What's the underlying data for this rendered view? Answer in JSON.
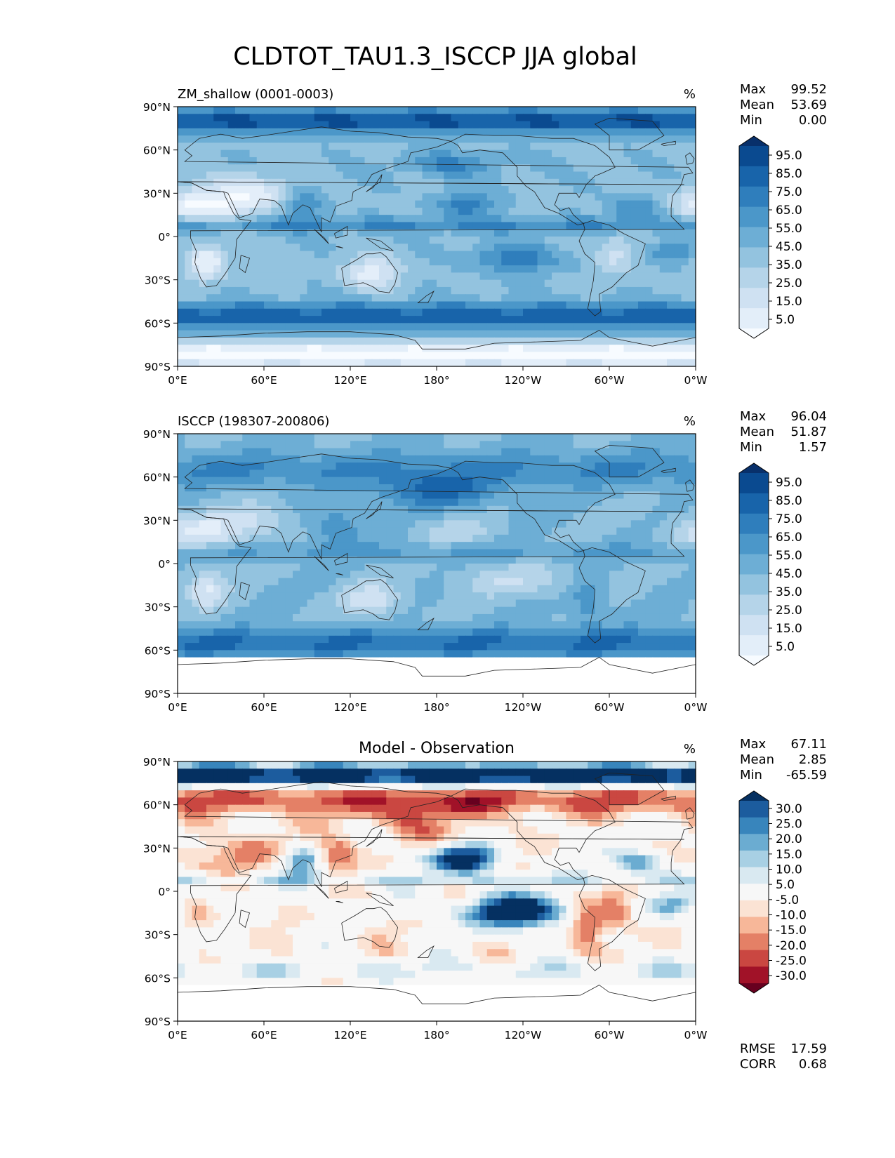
{
  "figure_title": "CLDTOT_TAU1.3_ISCCP JJA global",
  "colors": {
    "blues": [
      "#f7fbff",
      "#e3eef9",
      "#cfe1f2",
      "#b5d4e9",
      "#93c3df",
      "#6daed5",
      "#4b97c9",
      "#2f7ebc",
      "#1864aa",
      "#0a4a90",
      "#08306b"
    ],
    "diff": [
      "#67001f",
      "#a11228",
      "#ca4741",
      "#e48066",
      "#f7b799",
      "#fbe3d4",
      "#f7f7f7",
      "#d9e9f1",
      "#a8d0e4",
      "#6bacd1",
      "#3885bc",
      "#1c5c9e",
      "#053061"
    ],
    "coast": "#222222",
    "land_mask": "#ffffff"
  },
  "chart_data": [
    {
      "type": "heatmap",
      "name": "model",
      "title_left": "ZM_shallow (0001-0003)",
      "title_center": "",
      "units": "%",
      "stats": [
        {
          "label": "Max",
          "value": "99.52"
        },
        {
          "label": "Mean",
          "value": "53.69"
        },
        {
          "label": "Min",
          "value": "0.00"
        }
      ],
      "extra_stats": [],
      "xticks": [
        "0°E",
        "60°E",
        "120°E",
        "180°",
        "120°W",
        "60°W",
        "0°W"
      ],
      "yticks": [
        "90°N",
        "60°N",
        "30°N",
        "0°",
        "30°S",
        "60°S",
        "90°S"
      ],
      "xlim": [
        0,
        360
      ],
      "ylim": [
        -90,
        90
      ],
      "colorbar": {
        "levels": [
          0,
          10,
          20,
          30,
          40,
          50,
          60,
          70,
          80,
          90,
          100
        ],
        "labels": [
          "95.0",
          "85.0",
          "75.0",
          "65.0",
          "55.0",
          "45.0",
          "35.0",
          "25.0",
          "15.0",
          "5.0"
        ],
        "palette": "blues",
        "extend": "both"
      },
      "field": "model",
      "mask_south_of": null
    },
    {
      "type": "heatmap",
      "name": "obs",
      "title_left": "ISCCP (198307-200806)",
      "title_center": "",
      "units": "%",
      "stats": [
        {
          "label": "Max",
          "value": "96.04"
        },
        {
          "label": "Mean",
          "value": "51.87"
        },
        {
          "label": "Min",
          "value": "1.57"
        }
      ],
      "extra_stats": [],
      "xticks": [
        "0°E",
        "60°E",
        "120°E",
        "180°",
        "120°W",
        "60°W",
        "0°W"
      ],
      "yticks": [
        "90°N",
        "60°N",
        "30°N",
        "0°",
        "30°S",
        "60°S",
        "90°S"
      ],
      "xlim": [
        0,
        360
      ],
      "ylim": [
        -90,
        90
      ],
      "colorbar": {
        "levels": [
          0,
          10,
          20,
          30,
          40,
          50,
          60,
          70,
          80,
          90,
          100
        ],
        "labels": [
          "95.0",
          "85.0",
          "75.0",
          "65.0",
          "55.0",
          "45.0",
          "35.0",
          "25.0",
          "15.0",
          "5.0"
        ],
        "palette": "blues",
        "extend": "both"
      },
      "field": "obs",
      "mask_south_of": -67
    },
    {
      "type": "heatmap",
      "name": "diff",
      "title_left": "",
      "title_center": "Model - Observation",
      "units": "%",
      "stats": [
        {
          "label": "Max",
          "value": "67.11"
        },
        {
          "label": "Mean",
          "value": "2.85"
        },
        {
          "label": "Min",
          "value": "-65.59"
        }
      ],
      "extra_stats": [
        {
          "label": "RMSE",
          "value": "17.59"
        },
        {
          "label": "CORR",
          "value": "0.68"
        }
      ],
      "xticks": [
        "0°E",
        "60°E",
        "120°E",
        "180°",
        "120°W",
        "60°W",
        "0°W"
      ],
      "yticks": [
        "90°N",
        "60°N",
        "30°N",
        "0°",
        "30°S",
        "60°S",
        "90°S"
      ],
      "xlim": [
        0,
        360
      ],
      "ylim": [
        -90,
        90
      ],
      "colorbar": {
        "levels": [
          -35,
          -30,
          -25,
          -20,
          -15,
          -10,
          -5,
          5,
          10,
          15,
          20,
          25,
          30,
          35
        ],
        "labels": [
          "30.0",
          "25.0",
          "20.0",
          "15.0",
          "10.0",
          "5.0",
          "-5.0",
          "-10.0",
          "-15.0",
          "-20.0",
          "-25.0",
          "-30.0"
        ],
        "palette": "diff",
        "extend": "both"
      },
      "field": "diff",
      "mask_south_of": -67
    }
  ]
}
